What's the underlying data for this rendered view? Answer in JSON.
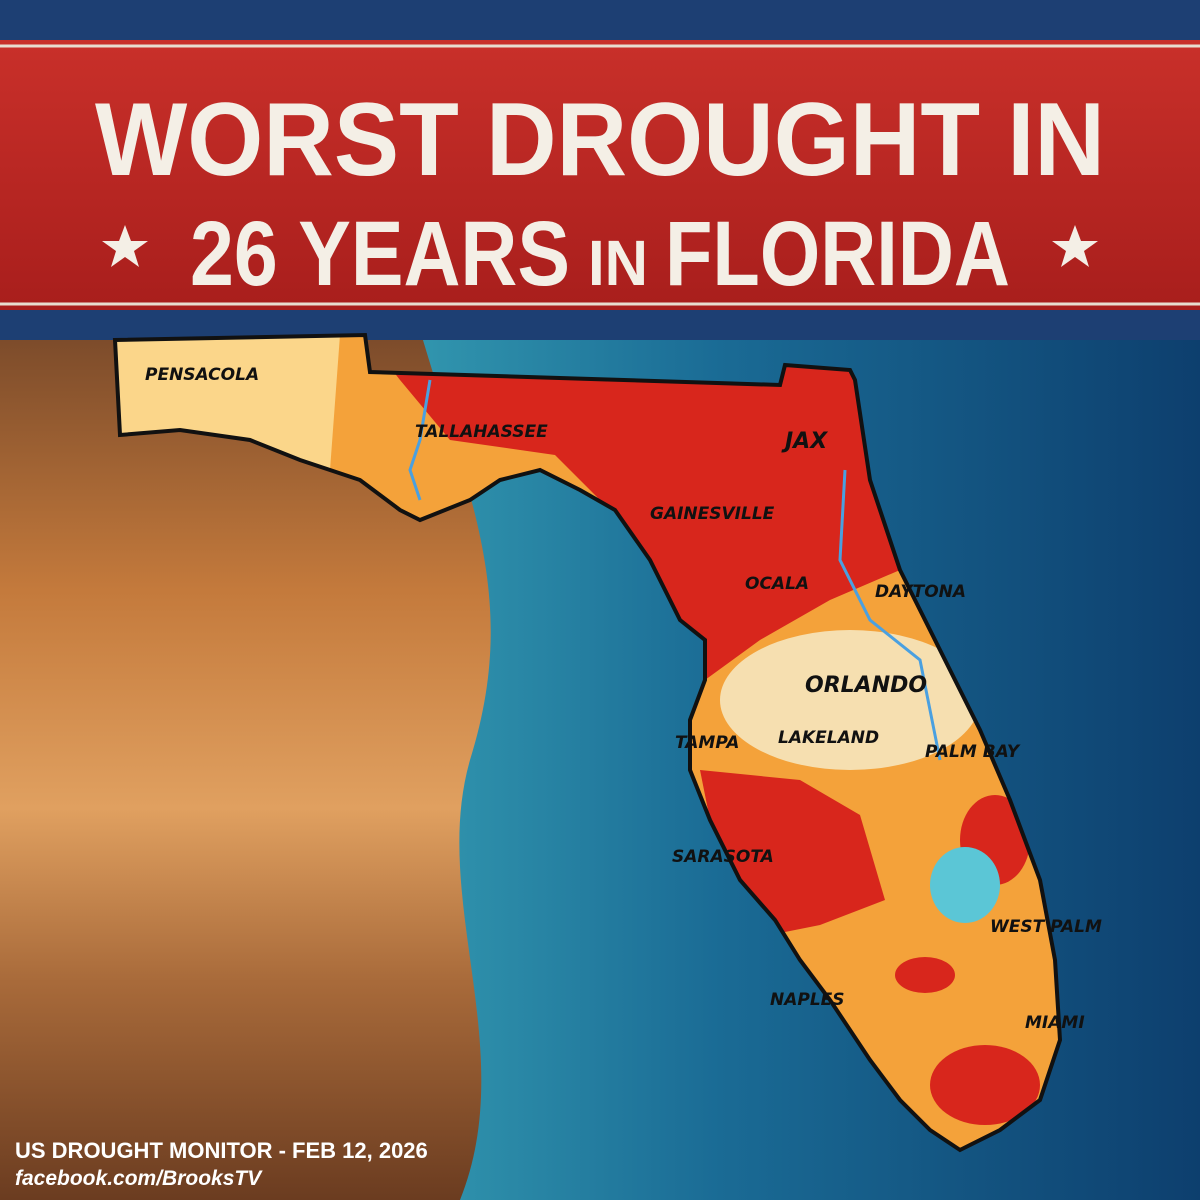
{
  "banner": {
    "line1": "WORST DROUGHT IN",
    "line2": {
      "years": "26 YEARS",
      "in": "IN",
      "state": "FLORIDA"
    }
  },
  "cities": [
    "PENSACOLA",
    "TALLAHASSEE",
    "JAX",
    "GAINESVILLE",
    "OCALA",
    "DAYTONA",
    "ORLANDO",
    "TAMPA",
    "LAKELAND",
    "PALM BAY",
    "SARASOTA",
    "WEST PALM",
    "NAPLES",
    "MIAMI"
  ],
  "footer": {
    "source": "US DROUGHT MONITOR - FEB 12, 2026",
    "credit": "facebook.com/BrooksTV"
  }
}
